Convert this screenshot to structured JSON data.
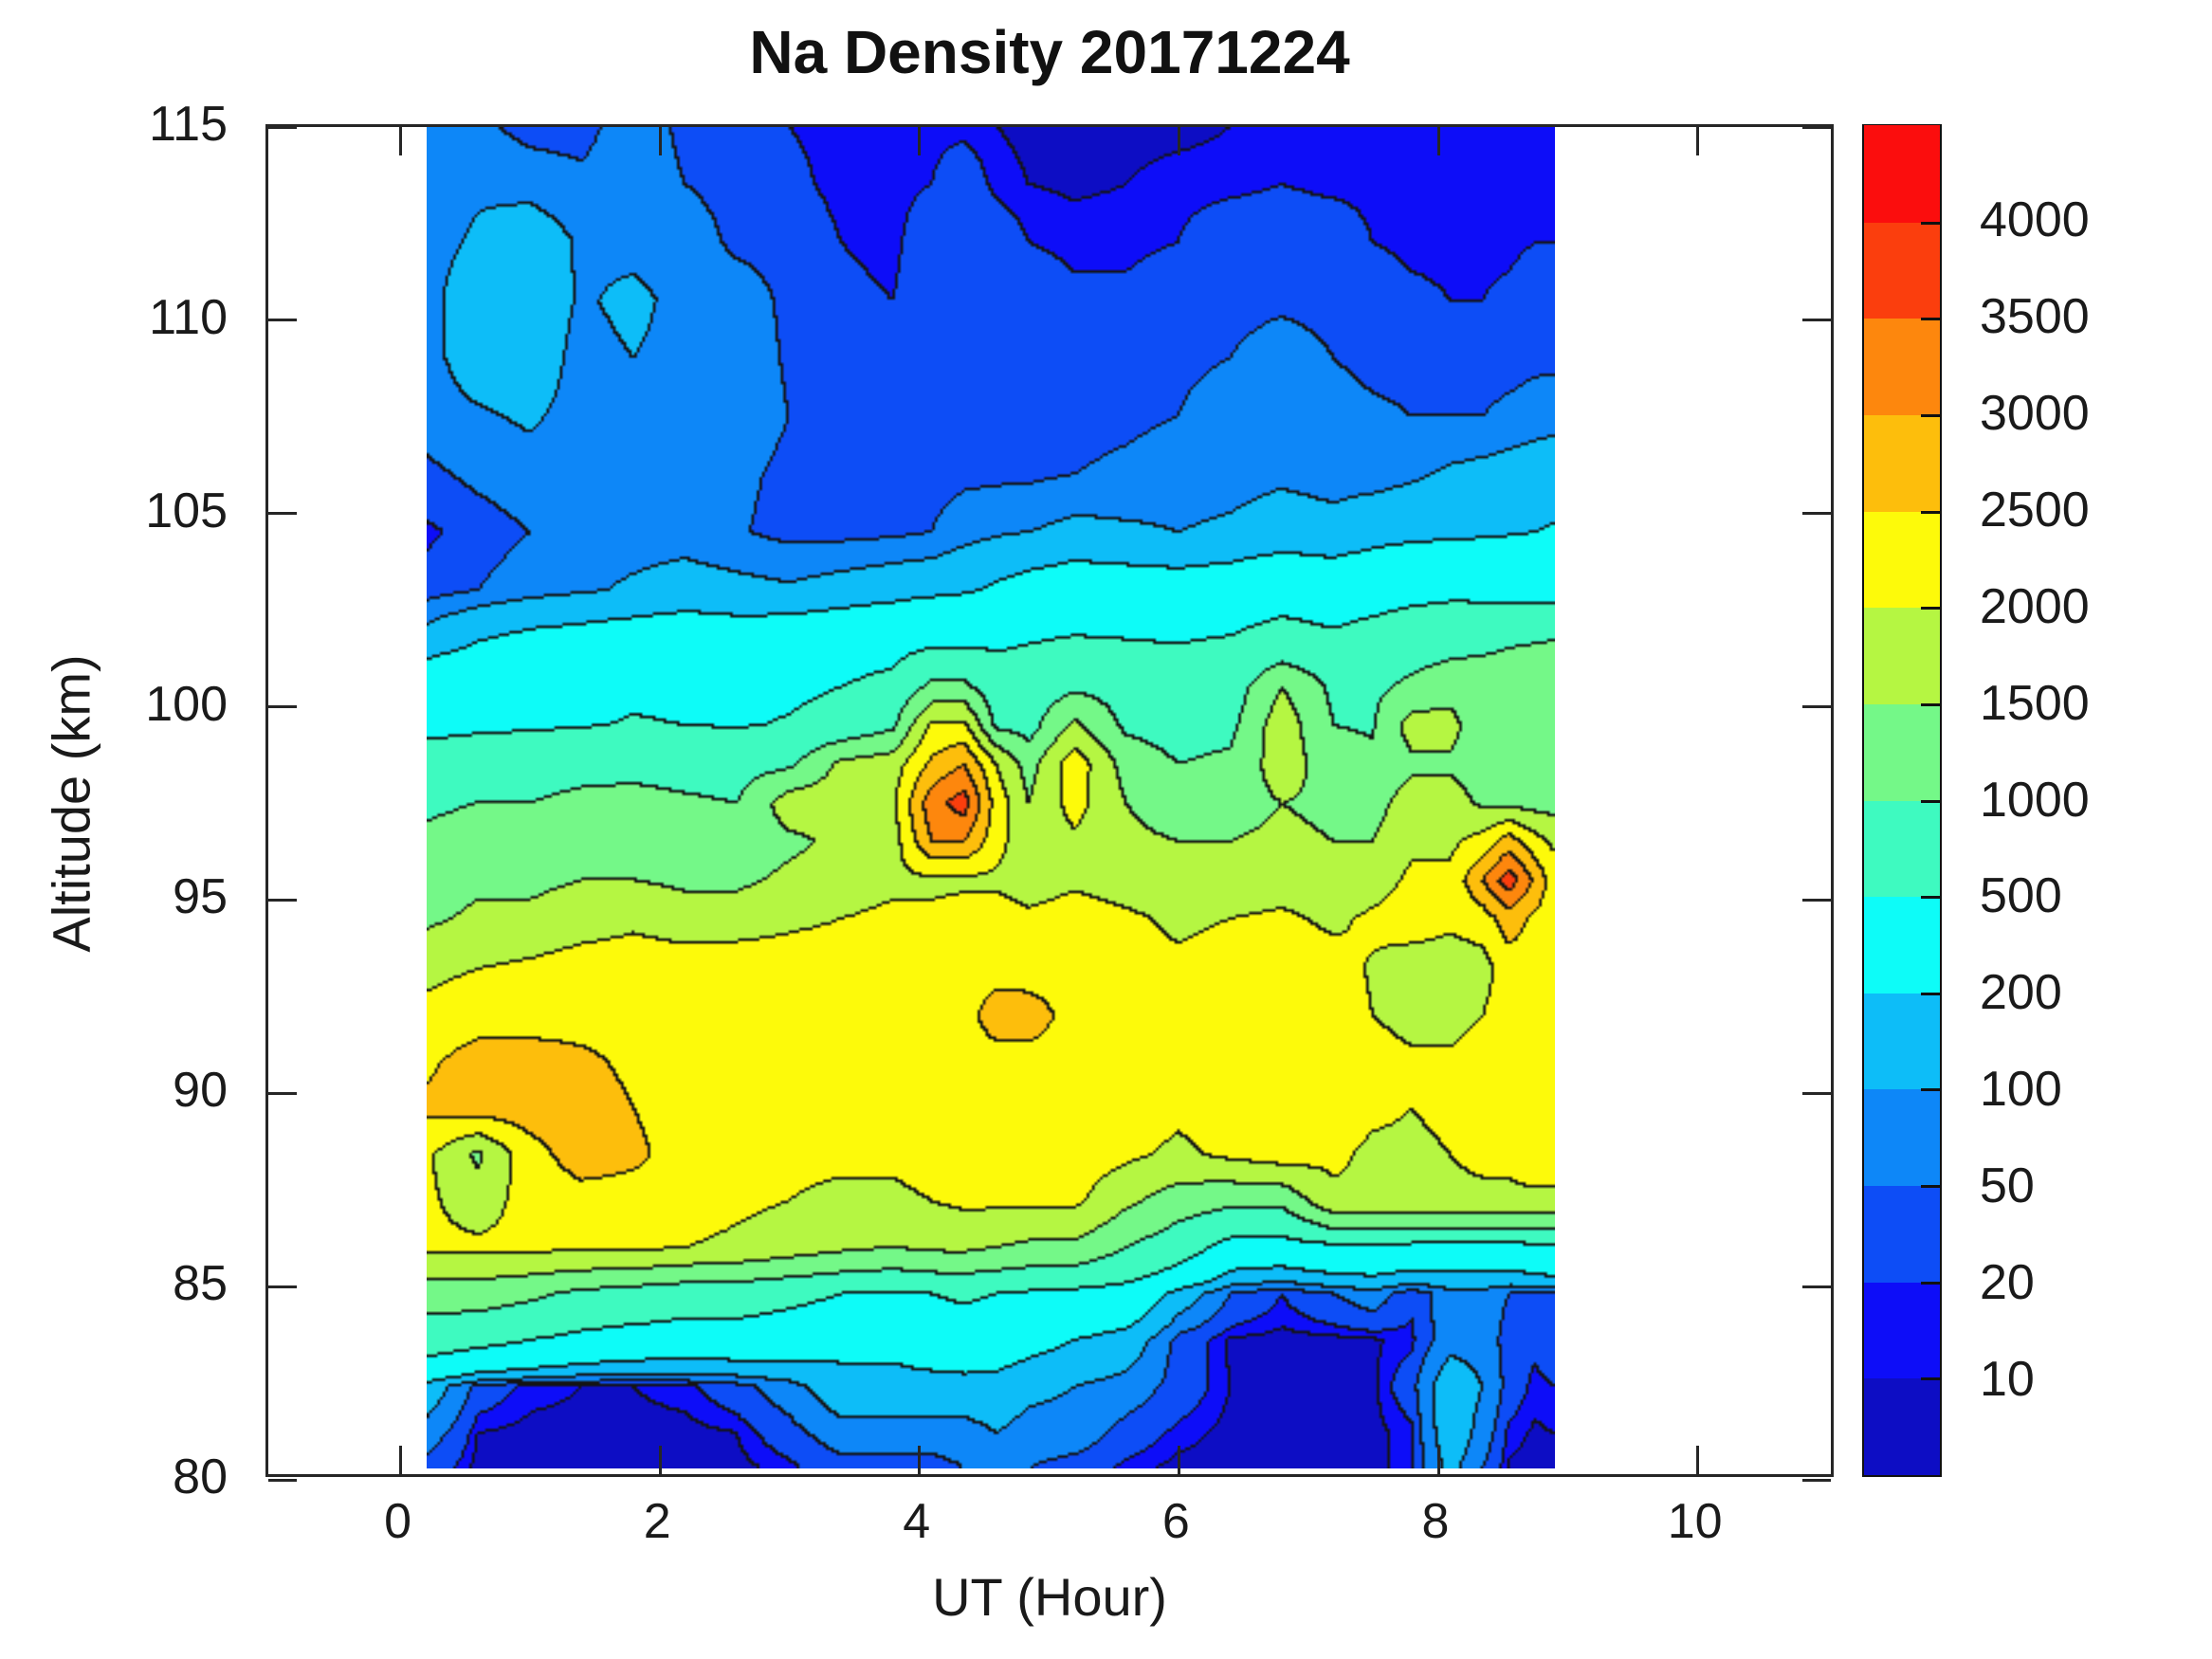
{
  "chart_data": {
    "type": "heatmap",
    "title": "Na Density 20171224",
    "xlabel": "UT (Hour)",
    "ylabel": "Altitude (km)",
    "xlim": [
      -1.02,
      11.07
    ],
    "ylim": [
      80,
      115
    ],
    "grid": false,
    "xticks": [
      0,
      2,
      4,
      6,
      8,
      10
    ],
    "yticks": [
      80,
      85,
      90,
      95,
      100,
      105,
      110,
      115
    ],
    "colorbar_labels": [
      "10",
      "20",
      "50",
      "100",
      "200",
      "500",
      "1000",
      "1500",
      "2000",
      "2500",
      "3000",
      "3500",
      "4000"
    ],
    "levels": [
      10,
      20,
      50,
      100,
      200,
      500,
      1000,
      1500,
      2000,
      2500,
      3000,
      3500,
      4000
    ],
    "bin_colors": [
      "#0d0dc4",
      "#0d0df8",
      "#0d4df6",
      "#0d87f8",
      "#0dbdf8",
      "#0dfcf8",
      "#3efac0",
      "#74f888",
      "#b5f642",
      "#fdfa0a",
      "#fdbe0c",
      "#fd870d",
      "#fb3e0d",
      "#fb0d0d"
    ],
    "contour_line_color": "#141414",
    "x_hours": [
      0.2,
      0.6,
      1.0,
      1.4,
      1.8,
      2.2,
      2.6,
      3.0,
      3.4,
      3.8,
      4.1,
      4.35,
      4.6,
      4.85,
      5.2,
      5.6,
      6.0,
      6.4,
      6.8,
      7.2,
      7.5,
      7.8,
      8.1,
      8.35,
      8.55,
      8.75,
      8.9
    ],
    "alt_km": [
      80.3,
      81.2,
      82.4,
      83.6,
      84.8,
      86,
      87.2,
      88.4,
      89.6,
      90.8,
      92,
      93.2,
      94.5,
      95.5,
      96.5,
      97.5,
      98.5,
      99.5,
      100.5,
      101.5,
      103,
      104.5,
      106,
      107.5,
      109,
      110.5,
      112,
      113.5,
      115
    ],
    "values": [
      [
        35,
        6,
        6,
        6,
        6,
        6,
        6,
        15,
        35,
        35,
        35,
        50,
        75,
        50,
        35,
        15,
        6,
        6,
        6,
        6,
        6,
        15,
        120,
        50,
        8,
        6,
        6
      ],
      [
        75,
        10,
        6,
        6,
        6,
        6,
        10,
        35,
        75,
        75,
        75,
        75,
        100,
        75,
        75,
        35,
        15,
        6,
        6,
        6,
        6,
        15,
        150,
        75,
        15,
        8,
        10
      ],
      [
        150,
        35,
        15,
        10,
        10,
        15,
        35,
        75,
        150,
        150,
        150,
        150,
        150,
        120,
        100,
        75,
        35,
        10,
        6,
        6,
        6,
        35,
        150,
        100,
        35,
        15,
        20
      ],
      [
        700,
        600,
        500,
        400,
        350,
        330,
        330,
        300,
        250,
        250,
        300,
        330,
        300,
        250,
        200,
        150,
        35,
        8,
        6,
        6,
        8,
        15,
        75,
        75,
        35,
        25,
        35
      ],
      [
        1250,
        1250,
        1100,
        900,
        800,
        700,
        700,
        600,
        500,
        450,
        500,
        550,
        500,
        450,
        400,
        350,
        150,
        50,
        20,
        50,
        75,
        25,
        75,
        75,
        50,
        50,
        50
      ],
      [
        2100,
        2100,
        2100,
        2100,
        2100,
        2000,
        1900,
        1750,
        1600,
        1500,
        1600,
        1600,
        1500,
        1400,
        1400,
        1000,
        700,
        350,
        330,
        400,
        400,
        380,
        350,
        350,
        350,
        400,
        450
      ],
      [
        2100,
        1750,
        2200,
        2300,
        2300,
        2250,
        2100,
        2000,
        1900,
        1900,
        2000,
        2100,
        2100,
        2100,
        2100,
        1600,
        1250,
        1100,
        1100,
        1900,
        1900,
        1900,
        1900,
        1900,
        1900,
        1900,
        1900
      ],
      [
        2100,
        1400,
        2300,
        2750,
        2600,
        2300,
        2250,
        2100,
        2100,
        2100,
        2200,
        2250,
        2250,
        2250,
        2250,
        2100,
        1900,
        2100,
        2250,
        2100,
        1900,
        1900,
        2000,
        2100,
        2100,
        2250,
        2250
      ],
      [
        2600,
        2750,
        2750,
        2750,
        2500,
        2300,
        2300,
        2300,
        2250,
        2250,
        2300,
        2300,
        2300,
        2300,
        2300,
        2250,
        2100,
        2250,
        2300,
        2250,
        2100,
        2000,
        2100,
        2250,
        2250,
        2300,
        2300
      ],
      [
        2400,
        2750,
        2750,
        2600,
        2400,
        2300,
        2300,
        2300,
        2300,
        2300,
        2300,
        2300,
        2300,
        2300,
        2300,
        2300,
        2250,
        2300,
        2300,
        2300,
        2250,
        2100,
        2100,
        2250,
        2300,
        2300,
        2300
      ],
      [
        2100,
        2250,
        2250,
        2300,
        2300,
        2300,
        2300,
        2300,
        2300,
        2300,
        2300,
        2300,
        2750,
        2750,
        2300,
        2300,
        2250,
        2300,
        2300,
        2300,
        2000,
        1800,
        1800,
        2000,
        2300,
        2300,
        2300
      ],
      [
        1900,
        2000,
        2100,
        2250,
        2250,
        2250,
        2300,
        2250,
        2250,
        2250,
        2250,
        2300,
        2300,
        2250,
        2300,
        2250,
        2100,
        2250,
        2250,
        2200,
        1950,
        1750,
        1750,
        1800,
        2250,
        2300,
        2300
      ],
      [
        1400,
        1600,
        1600,
        1750,
        1900,
        1750,
        1750,
        1900,
        2000,
        2100,
        2100,
        2200,
        2250,
        2100,
        2250,
        2100,
        1900,
        2000,
        2100,
        1900,
        2100,
        2250,
        2100,
        2250,
        2750,
        2400,
        2250
      ],
      [
        1250,
        1400,
        1400,
        1500,
        1500,
        1400,
        1400,
        1600,
        1750,
        1900,
        1900,
        1900,
        1900,
        1750,
        1900,
        1750,
        1600,
        1600,
        1750,
        1600,
        1750,
        2100,
        2100,
        3000,
        3800,
        2900,
        2250
      ],
      [
        1100,
        1250,
        1250,
        1300,
        1300,
        1250,
        1250,
        1400,
        1600,
        1750,
        3000,
        3000,
        2200,
        1600,
        1900,
        1600,
        1500,
        1500,
        1600,
        1500,
        1500,
        1900,
        1900,
        2200,
        2750,
        2200,
        1900
      ],
      [
        900,
        1000,
        1000,
        1100,
        1100,
        1050,
        1000,
        1750,
        1750,
        1900,
        3300,
        3750,
        2300,
        1500,
        2200,
        1500,
        1250,
        1300,
        1500,
        1400,
        1300,
        1750,
        1750,
        1400,
        1350,
        1300,
        1300
      ],
      [
        700,
        750,
        800,
        850,
        900,
        850,
        800,
        900,
        1600,
        1750,
        2600,
        3000,
        2000,
        1300,
        2300,
        1300,
        1000,
        1100,
        1750,
        1250,
        1100,
        1400,
        1400,
        1200,
        1250,
        1250,
        1250
      ],
      [
        380,
        430,
        450,
        480,
        520,
        500,
        480,
        520,
        600,
        900,
        2100,
        2100,
        900,
        800,
        1600,
        900,
        800,
        850,
        1800,
        1000,
        950,
        1700,
        1700,
        1100,
        1050,
        1000,
        1000
      ],
      [
        330,
        380,
        400,
        420,
        450,
        430,
        420,
        450,
        500,
        600,
        1100,
        1100,
        700,
        700,
        900,
        800,
        700,
        700,
        1500,
        900,
        900,
        1100,
        1250,
        1200,
        1200,
        1200,
        1200
      ],
      [
        150,
        220,
        260,
        280,
        300,
        320,
        300,
        320,
        350,
        390,
        500,
        500,
        480,
        520,
        560,
        540,
        520,
        560,
        700,
        600,
        700,
        800,
        900,
        950,
        1000,
        1050,
        1100
      ],
      [
        30,
        50,
        75,
        90,
        110,
        130,
        120,
        110,
        130,
        150,
        160,
        180,
        220,
        250,
        280,
        270,
        260,
        280,
        330,
        300,
        330,
        380,
        400,
        380,
        360,
        350,
        340
      ],
      [
        15,
        30,
        50,
        75,
        75,
        75,
        55,
        35,
        35,
        40,
        50,
        75,
        90,
        100,
        120,
        110,
        100,
        110,
        130,
        120,
        150,
        160,
        170,
        180,
        190,
        200,
        210
      ],
      [
        40,
        60,
        75,
        75,
        75,
        75,
        60,
        40,
        35,
        35,
        35,
        40,
        40,
        40,
        50,
        60,
        75,
        80,
        90,
        80,
        75,
        90,
        110,
        120,
        130,
        140,
        150
      ],
      [
        70,
        90,
        110,
        75,
        75,
        75,
        75,
        50,
        35,
        30,
        35,
        35,
        35,
        35,
        35,
        40,
        50,
        75,
        80,
        75,
        60,
        50,
        50,
        50,
        60,
        70,
        75
      ],
      [
        75,
        140,
        150,
        75,
        100,
        75,
        75,
        45,
        30,
        25,
        35,
        35,
        35,
        35,
        35,
        35,
        40,
        50,
        75,
        50,
        35,
        35,
        35,
        35,
        35,
        40,
        40
      ],
      [
        75,
        150,
        160,
        90,
        120,
        75,
        75,
        40,
        25,
        20,
        35,
        35,
        35,
        35,
        25,
        25,
        35,
        35,
        40,
        35,
        35,
        25,
        20,
        20,
        25,
        35,
        35
      ],
      [
        75,
        110,
        150,
        90,
        75,
        75,
        40,
        35,
        20,
        15,
        35,
        35,
        35,
        20,
        15,
        15,
        20,
        35,
        35,
        35,
        20,
        15,
        15,
        15,
        15,
        20,
        20
      ],
      [
        75,
        90,
        75,
        60,
        75,
        50,
        35,
        25,
        15,
        15,
        20,
        35,
        15,
        10,
        8,
        10,
        15,
        15,
        20,
        15,
        15,
        15,
        15,
        15,
        15,
        15,
        15
      ],
      [
        75,
        60,
        35,
        35,
        75,
        40,
        35,
        20,
        15,
        15,
        15,
        15,
        10,
        7,
        6,
        6,
        6,
        10,
        15,
        15,
        15,
        15,
        15,
        15,
        15,
        15,
        15
      ]
    ]
  },
  "layout_note": "filled contour of sodium density vs UT hour and altitude with discrete colorbar"
}
